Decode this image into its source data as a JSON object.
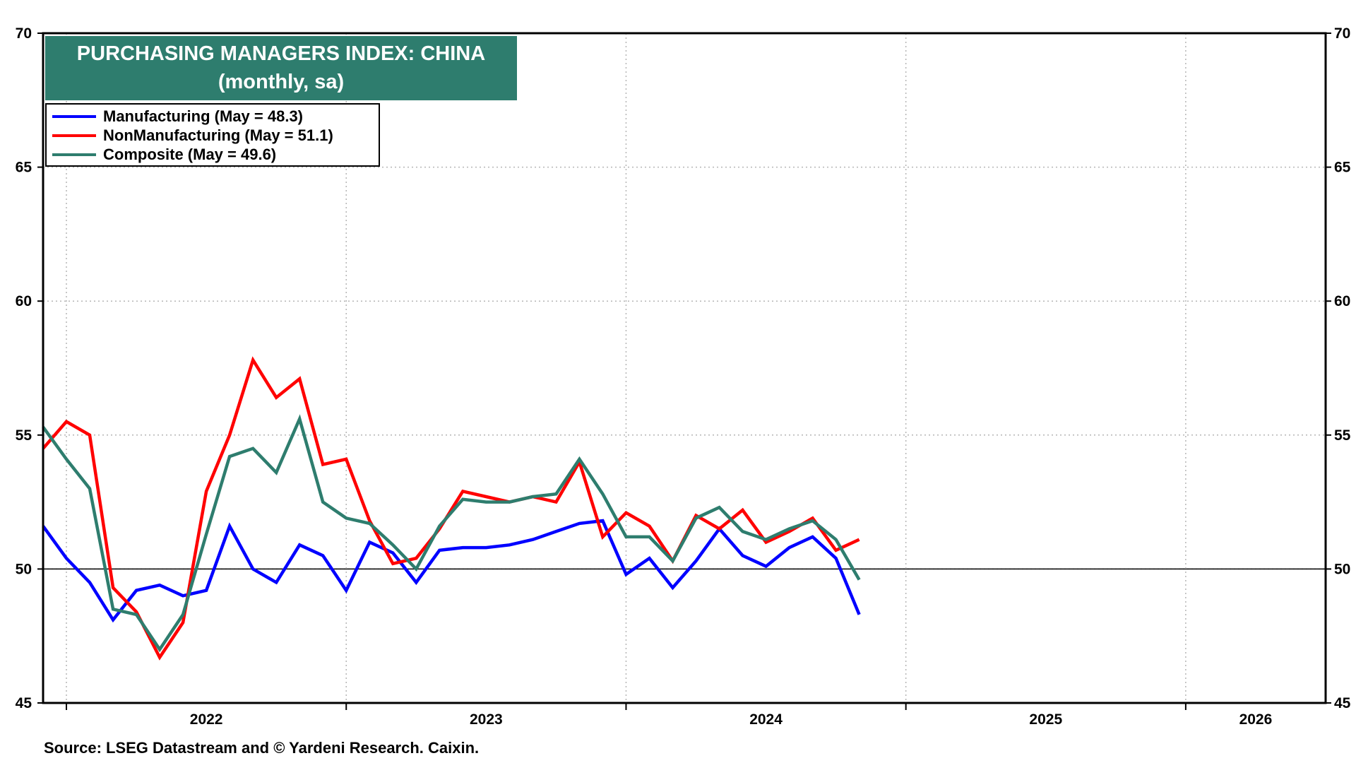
{
  "chart_data": {
    "type": "line",
    "title": "PURCHASING MANAGERS INDEX: CHINA",
    "subtitle": "(monthly, sa)",
    "ylim": [
      45,
      70
    ],
    "yticks": [
      45,
      50,
      55,
      60,
      65,
      70
    ],
    "x_start": "2021-12",
    "x_end": "2026-07",
    "x_tick_labels": [
      "2022",
      "2023",
      "2024",
      "2025",
      "2026"
    ],
    "grid": true,
    "reference_line": 50,
    "legend_position": "top-left",
    "months": [
      "2021-12",
      "2022-01",
      "2022-02",
      "2022-03",
      "2022-04",
      "2022-05",
      "2022-06",
      "2022-07",
      "2022-08",
      "2022-09",
      "2022-10",
      "2022-11",
      "2022-12",
      "2023-01",
      "2023-02",
      "2023-03",
      "2023-04",
      "2023-05",
      "2023-06",
      "2023-07",
      "2023-08",
      "2023-09",
      "2023-10",
      "2023-11",
      "2023-12",
      "2024-01",
      "2024-02",
      "2024-03",
      "2024-04",
      "2024-05",
      "2024-06",
      "2024-07",
      "2024-08",
      "2024-09",
      "2024-10",
      "2024-11",
      "2024-12"
    ],
    "series": [
      {
        "name": "Manufacturing (May = 48.3)",
        "color": "#0000ff",
        "values": [
          51.6,
          50.4,
          49.5,
          48.1,
          49.2,
          49.4,
          49.0,
          49.2,
          51.6,
          50.0,
          49.5,
          50.9,
          50.5,
          49.2,
          51.0,
          50.6,
          49.5,
          50.7,
          50.8,
          50.8,
          50.9,
          51.1,
          51.4,
          51.7,
          51.8,
          49.8,
          50.4,
          49.3,
          50.3,
          51.5,
          50.5,
          50.1,
          50.8,
          51.2,
          50.4,
          48.3,
          null
        ]
      },
      {
        "name": "NonManufacturing (May = 51.1)",
        "color": "#ff0000",
        "values": [
          54.5,
          55.5,
          55.0,
          49.3,
          48.4,
          46.7,
          48.0,
          52.9,
          55.0,
          57.8,
          56.4,
          57.1,
          53.9,
          54.1,
          51.8,
          50.2,
          50.4,
          51.5,
          52.9,
          52.7,
          52.5,
          52.7,
          52.5,
          54.0,
          51.2,
          52.1,
          51.6,
          50.3,
          52.0,
          51.5,
          52.2,
          51.0,
          51.4,
          51.9,
          50.7,
          51.1,
          null
        ]
      },
      {
        "name": "Composite (May = 49.6)",
        "color": "#2e7d6e",
        "values": [
          55.3,
          54.1,
          53.0,
          48.5,
          48.3,
          47.0,
          48.3,
          51.3,
          54.2,
          54.5,
          53.6,
          55.6,
          52.5,
          51.9,
          51.7,
          50.9,
          50.0,
          51.6,
          52.6,
          52.5,
          52.5,
          52.7,
          52.8,
          54.1,
          52.8,
          51.2,
          51.2,
          50.3,
          51.9,
          52.3,
          51.4,
          51.1,
          51.5,
          51.8,
          51.1,
          49.6,
          null
        ]
      }
    ]
  },
  "title_line1": "PURCHASING MANAGERS INDEX: CHINA",
  "title_line2": "(monthly, sa)",
  "legend": {
    "manufacturing": "Manufacturing (May = 48.3)",
    "nonmanufacturing": "NonManufacturing (May = 51.1)",
    "composite": "Composite (May = 49.6)"
  },
  "source": "Source: LSEG Datastream and © Yardeni Research. Caixin."
}
